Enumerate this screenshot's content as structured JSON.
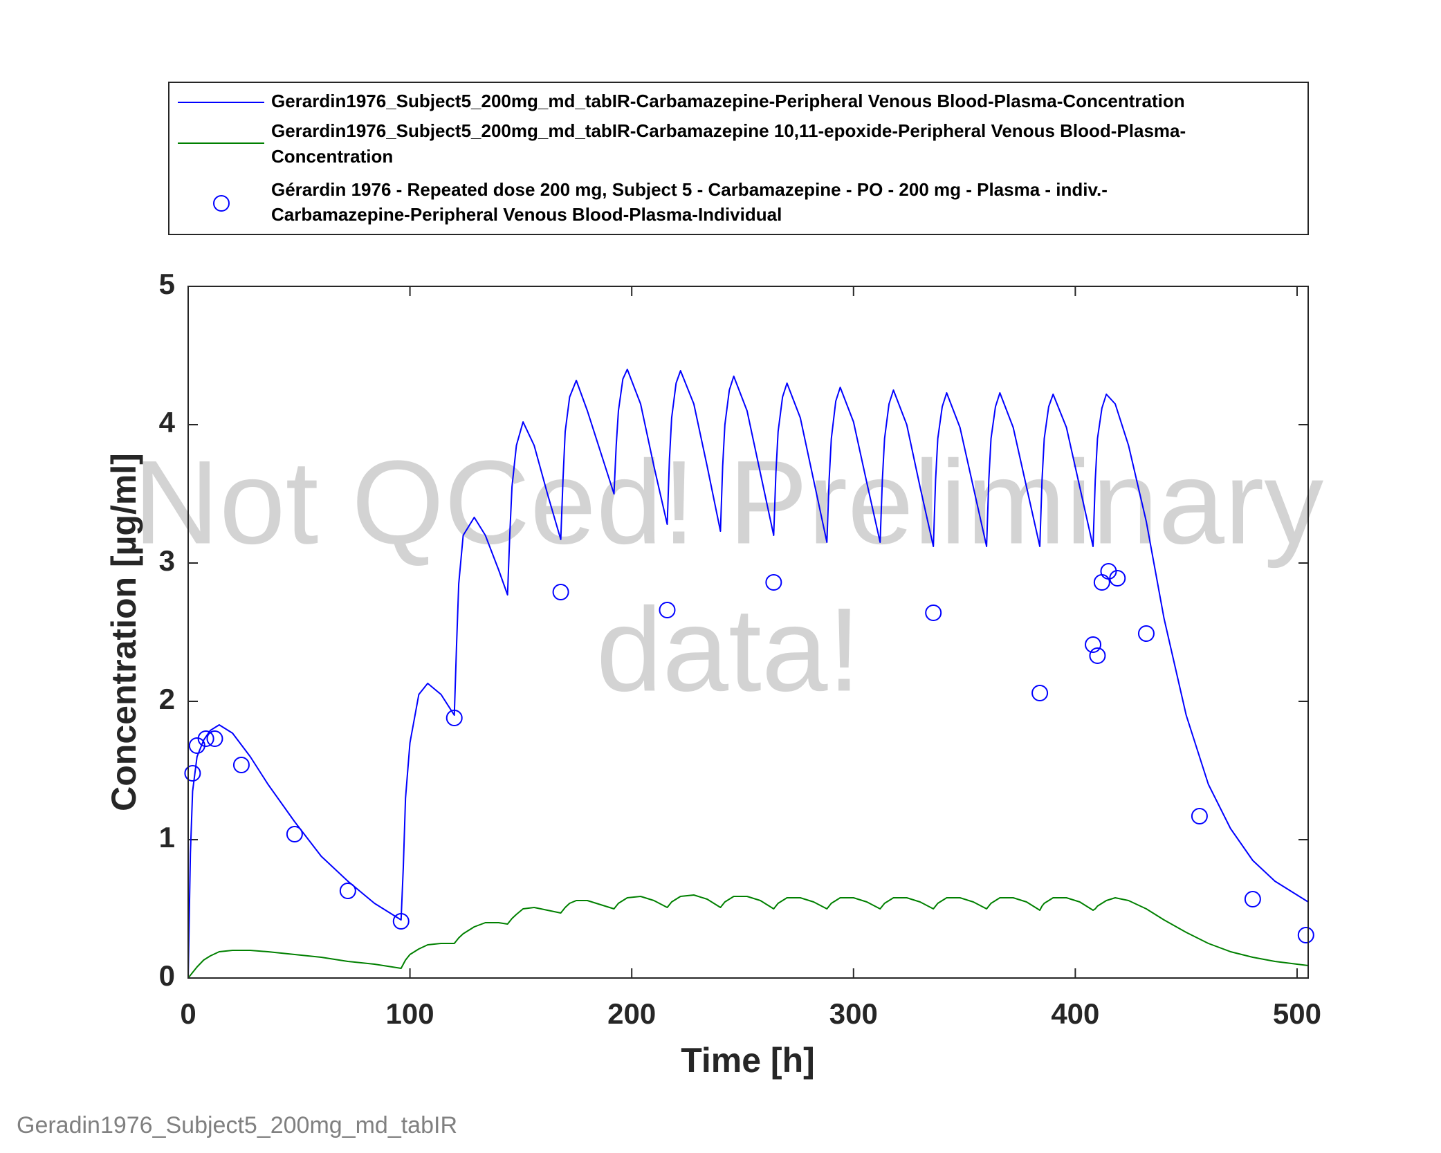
{
  "chart_data": {
    "type": "line",
    "xlabel": "Time [h]",
    "ylabel": "Concentration [µg/ml]",
    "watermark": [
      "Not QCed! Preliminary",
      "data!"
    ],
    "footer": "Geradin1976_Subject5_200mg_md_tabIR",
    "xlim": [
      0,
      505
    ],
    "ylim": [
      0,
      5
    ],
    "xticks": [
      0,
      100,
      200,
      300,
      400,
      500
    ],
    "yticks": [
      0,
      1,
      2,
      3,
      4,
      5
    ],
    "legend": "top-outside",
    "x": [
      0,
      1,
      2,
      4,
      7,
      10,
      14,
      20,
      28,
      36,
      48,
      60,
      72,
      84,
      96,
      97,
      98,
      100,
      104,
      108,
      114,
      120,
      121,
      122,
      124,
      129,
      134,
      140,
      144,
      145,
      146,
      148,
      151,
      156,
      162,
      168,
      169,
      170,
      172,
      175,
      180,
      186,
      192,
      193,
      194,
      196,
      198,
      204,
      210,
      216,
      217,
      218,
      220,
      222,
      228,
      234,
      240,
      241,
      242,
      244,
      246,
      252,
      258,
      264,
      265,
      266,
      268,
      270,
      276,
      282,
      288,
      289,
      290,
      292,
      294,
      300,
      306,
      312,
      313,
      314,
      316,
      318,
      324,
      330,
      336,
      337,
      338,
      340,
      342,
      348,
      354,
      360,
      361,
      362,
      364,
      366,
      372,
      378,
      384,
      385,
      386,
      388,
      390,
      396,
      402,
      408,
      409,
      410,
      412,
      414,
      418,
      424,
      432,
      440,
      450,
      460,
      470,
      480,
      490,
      505
    ],
    "series": [
      {
        "name": [
          "Gerardin1976_Subject5_200mg_md_tabIR-Carbamazepine-Peripheral Venous Blood-Plasma-Concentration"
        ],
        "color": "#0000ff",
        "values": [
          0,
          0.9,
          1.35,
          1.6,
          1.72,
          1.79,
          1.83,
          1.77,
          1.6,
          1.4,
          1.13,
          0.88,
          0.7,
          0.54,
          0.42,
          0.8,
          1.3,
          1.7,
          2.05,
          2.13,
          2.05,
          1.9,
          2.4,
          2.85,
          3.2,
          3.33,
          3.2,
          2.95,
          2.77,
          3.2,
          3.55,
          3.85,
          4.02,
          3.85,
          3.5,
          3.17,
          3.6,
          3.95,
          4.2,
          4.32,
          4.1,
          3.8,
          3.5,
          3.85,
          4.1,
          4.33,
          4.4,
          4.15,
          3.7,
          3.28,
          3.75,
          4.05,
          4.3,
          4.39,
          4.15,
          3.7,
          3.23,
          3.7,
          4.0,
          4.25,
          4.35,
          4.1,
          3.65,
          3.2,
          3.65,
          3.95,
          4.2,
          4.3,
          4.05,
          3.6,
          3.15,
          3.6,
          3.9,
          4.17,
          4.27,
          4.02,
          3.58,
          3.15,
          3.6,
          3.9,
          4.15,
          4.25,
          4.0,
          3.55,
          3.12,
          3.6,
          3.9,
          4.13,
          4.23,
          3.98,
          3.55,
          3.12,
          3.6,
          3.9,
          4.13,
          4.23,
          3.98,
          3.55,
          3.12,
          3.6,
          3.9,
          4.13,
          4.22,
          3.98,
          3.55,
          3.12,
          3.6,
          3.9,
          4.12,
          4.22,
          4.15,
          3.85,
          3.3,
          2.6,
          1.9,
          1.4,
          1.08,
          0.85,
          0.7,
          0.55
        ]
      },
      {
        "name": [
          "Gerardin1976_Subject5_200mg_md_tabIR-Carbamazepine 10,11-epoxide-Peripheral Venous Blood-Plasma-",
          "Concentration"
        ],
        "color": "#008000",
        "values": [
          0,
          0.02,
          0.04,
          0.08,
          0.13,
          0.16,
          0.19,
          0.2,
          0.2,
          0.19,
          0.17,
          0.15,
          0.12,
          0.1,
          0.07,
          0.1,
          0.13,
          0.17,
          0.21,
          0.24,
          0.25,
          0.25,
          0.27,
          0.29,
          0.32,
          0.37,
          0.4,
          0.4,
          0.39,
          0.41,
          0.43,
          0.46,
          0.5,
          0.51,
          0.49,
          0.47,
          0.49,
          0.51,
          0.54,
          0.56,
          0.56,
          0.53,
          0.5,
          0.52,
          0.54,
          0.56,
          0.58,
          0.59,
          0.56,
          0.51,
          0.53,
          0.55,
          0.57,
          0.59,
          0.6,
          0.57,
          0.51,
          0.53,
          0.55,
          0.57,
          0.59,
          0.59,
          0.56,
          0.5,
          0.52,
          0.54,
          0.56,
          0.58,
          0.58,
          0.55,
          0.5,
          0.52,
          0.54,
          0.56,
          0.58,
          0.58,
          0.55,
          0.5,
          0.52,
          0.54,
          0.56,
          0.58,
          0.58,
          0.55,
          0.5,
          0.52,
          0.54,
          0.56,
          0.58,
          0.58,
          0.55,
          0.5,
          0.52,
          0.54,
          0.56,
          0.58,
          0.58,
          0.55,
          0.49,
          0.52,
          0.54,
          0.56,
          0.58,
          0.58,
          0.55,
          0.49,
          0.5,
          0.52,
          0.54,
          0.56,
          0.58,
          0.56,
          0.5,
          0.42,
          0.33,
          0.25,
          0.19,
          0.15,
          0.12,
          0.09
        ]
      },
      {
        "name": [
          "Gérardin 1976 - Repeated dose 200 mg, Subject 5 - Carbamazepine - PO - 200 mg - Plasma - indiv.-",
          "Carbamazepine-Peripheral Venous Blood-Plasma-Individual"
        ],
        "color": "#0000ff",
        "marker": "circle",
        "x": [
          2,
          4,
          8,
          12,
          24,
          48,
          72,
          96,
          120,
          168,
          216,
          264,
          336,
          384,
          408,
          410,
          412,
          415,
          419,
          432,
          456,
          480,
          504
        ],
        "values": [
          1.48,
          1.68,
          1.73,
          1.73,
          1.54,
          1.04,
          0.63,
          0.41,
          1.88,
          2.79,
          2.66,
          2.86,
          2.64,
          2.06,
          2.41,
          2.33,
          2.86,
          2.94,
          2.89,
          2.49,
          1.17,
          0.57,
          0.31
        ]
      }
    ]
  }
}
